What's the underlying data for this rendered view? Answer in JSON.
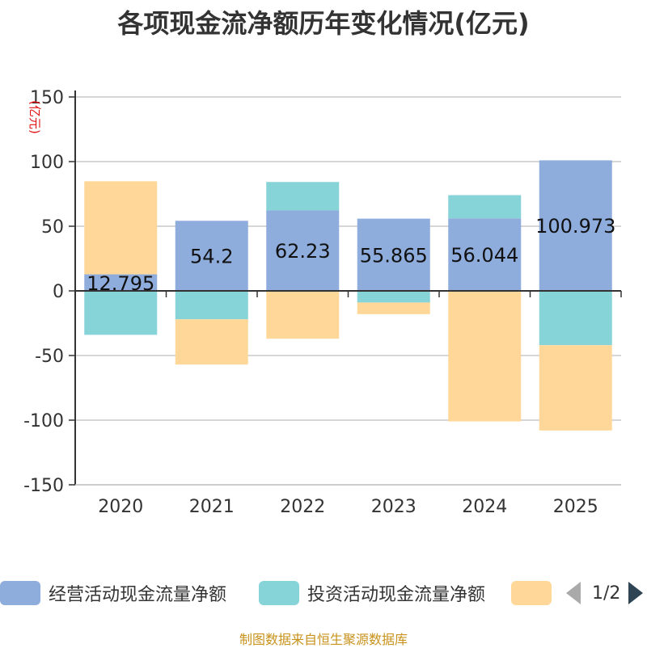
{
  "title": "各项现金流净额历年变化情况(亿元)",
  "footer": "制图数据来自恒生聚源数据库",
  "colors": {
    "operating": "#8eacdc",
    "investing": "#86d4d8",
    "financing": "#ffd899",
    "axis": "#333333",
    "grid": "#c8c8c8",
    "unit": "#e01010"
  },
  "legend": {
    "items": [
      {
        "label": "经营活动现金流量净额",
        "color": "#8eacdc"
      },
      {
        "label": "投资活动现金流量净额",
        "color": "#86d4d8"
      },
      {
        "label": "",
        "color": "#ffd899"
      }
    ],
    "page_text": "1/2"
  },
  "chart_data": {
    "type": "bar",
    "stacked": true,
    "categories": [
      "2020",
      "2021",
      "2022",
      "2023",
      "2024",
      "2025"
    ],
    "ylim": [
      -150,
      150
    ],
    "yticks": [
      150,
      100,
      50,
      0,
      -50,
      -100,
      -150
    ],
    "yunit": "(亿元)",
    "grid": true,
    "legend_position": "bottom",
    "series": [
      {
        "name": "经营活动现金流量净额",
        "values": [
          12.795,
          54.2,
          62.23,
          55.865,
          56.044,
          100.973
        ],
        "color": "#8eacdc",
        "show_labels": true
      },
      {
        "name": "投资活动现金流量净额",
        "values": [
          -34,
          -22,
          22,
          -9,
          18,
          -42
        ],
        "color": "#86d4d8",
        "show_labels": false
      },
      {
        "name": "",
        "values": [
          72,
          -35,
          -37,
          -9,
          -101,
          -66
        ],
        "color": "#ffd899",
        "show_labels": false
      }
    ],
    "data_labels": [
      "12.795",
      "54.2",
      "62.23",
      "55.865",
      "56.044",
      "100.973"
    ]
  }
}
